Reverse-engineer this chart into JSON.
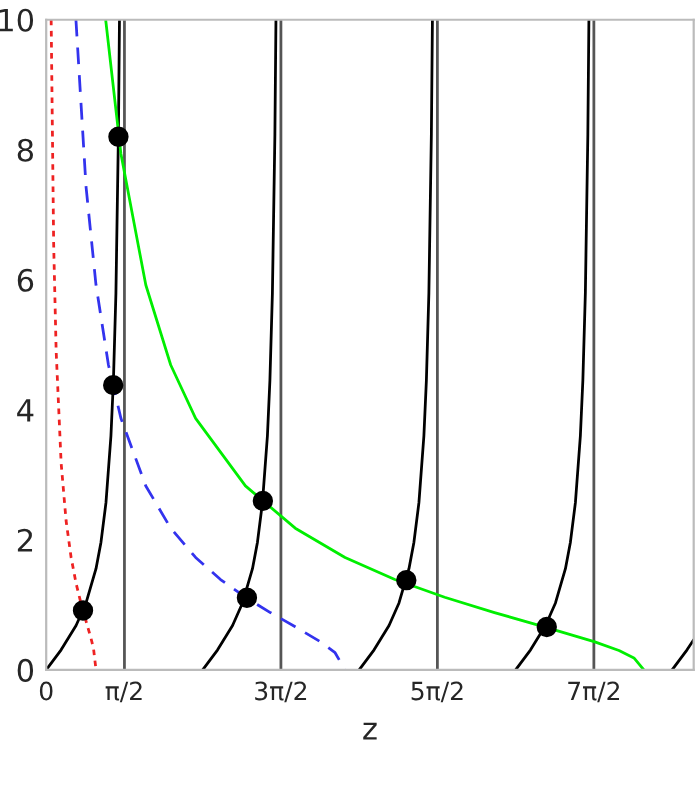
{
  "chart_data": {
    "type": "line",
    "xlabel": "z",
    "xlim": [
      0,
      13.0
    ],
    "ylim": [
      0,
      10
    ],
    "xticks": [
      0,
      {
        "value": 1.5708,
        "label": "π/2"
      },
      {
        "value": 4.7124,
        "label": "3π/2"
      },
      {
        "value": 7.854,
        "label": "5π/2"
      },
      {
        "value": 10.9956,
        "label": "7π/2"
      }
    ],
    "yticks": [
      0,
      2,
      4,
      6,
      8,
      10
    ],
    "grid": false,
    "legend": false,
    "marker": "none",
    "series": [
      {
        "color": "#000000",
        "line_style": "solid",
        "x": [
          0,
          0.3,
          0.6,
          0.8,
          1.0,
          1.1,
          1.2,
          1.3,
          1.35,
          1.4,
          1.45,
          1.4711
        ],
        "values": [
          0,
          0.309,
          0.684,
          1.03,
          1.557,
          1.965,
          2.572,
          3.602,
          4.455,
          5.798,
          8.238,
          10
        ]
      },
      {
        "color": "#000000",
        "line_style": "solid",
        "x": [
          3.1416,
          3.4416,
          3.7416,
          3.9416,
          4.1416,
          4.2416,
          4.3416,
          4.4416,
          4.4916,
          4.5416,
          4.5916,
          4.6127
        ],
        "values": [
          0,
          0.309,
          0.684,
          1.03,
          1.557,
          1.965,
          2.572,
          3.602,
          4.455,
          5.798,
          8.238,
          10
        ]
      },
      {
        "color": "#000000",
        "line_style": "solid",
        "x": [
          6.2832,
          6.5832,
          6.8832,
          7.0832,
          7.2832,
          7.3832,
          7.4832,
          7.5832,
          7.6332,
          7.6832,
          7.7332,
          7.7543
        ],
        "values": [
          0,
          0.309,
          0.684,
          1.03,
          1.557,
          1.965,
          2.572,
          3.602,
          4.455,
          5.798,
          8.238,
          10
        ]
      },
      {
        "color": "#000000",
        "line_style": "solid",
        "x": [
          9.4248,
          9.7248,
          10.0248,
          10.2248,
          10.4248,
          10.5248,
          10.6248,
          10.7248,
          10.7748,
          10.8248,
          10.8748,
          10.8959
        ],
        "values": [
          0,
          0.309,
          0.684,
          1.03,
          1.557,
          1.965,
          2.572,
          3.602,
          4.455,
          5.798,
          8.238,
          10
        ]
      },
      {
        "color": "#000000",
        "line_style": "solid",
        "x": [
          12.5664,
          12.8664,
          13.0
        ],
        "values": [
          0,
          0.309,
          0.463
        ]
      },
      {
        "color": "#00ee00",
        "line_style": "solid",
        "x": [
          1.194,
          1.5,
          2,
          2.5,
          3,
          4,
          5,
          6,
          7,
          8,
          9,
          10,
          11,
          11.5,
          11.8,
          12
        ],
        "values": [
          10,
          7.94,
          5.92,
          4.69,
          3.87,
          2.83,
          2.18,
          1.73,
          1.39,
          1.118,
          0.882,
          0.663,
          0.436,
          0.298,
          0.184,
          0
        ]
      },
      {
        "color": "#3333ee",
        "line_style": "dashed",
        "x": [
          0.597,
          0.8,
          1,
          1.25,
          1.5,
          2,
          2.5,
          3,
          3.5,
          4,
          4.5,
          5,
          5.5,
          5.8,
          6
        ],
        "values": [
          10,
          7.43,
          5.92,
          4.69,
          3.87,
          2.83,
          2.18,
          1.73,
          1.39,
          1.118,
          0.882,
          0.663,
          0.436,
          0.265,
          0
        ]
      },
      {
        "color": "#ee2222",
        "line_style": "dotted",
        "x": [
          0.0995,
          0.15,
          0.2,
          0.3,
          0.4,
          0.5,
          0.6,
          0.7,
          0.8,
          0.9,
          0.95,
          1
        ],
        "values": [
          10,
          6.54,
          4.9,
          3.18,
          2.29,
          1.73,
          1.33,
          1.02,
          0.75,
          0.484,
          0.329,
          0
        ]
      },
      {
        "type": "scatter",
        "marker": "circle",
        "color": "#000000",
        "x": [
          0.739,
          1.345,
          4.03,
          1.45,
          4.35,
          7.23,
          10.05
        ],
        "values": [
          0.914,
          4.38,
          1.11,
          8.2,
          2.6,
          1.38,
          0.66
        ]
      }
    ],
    "ref_lines": [
      {
        "axis": "x",
        "value": 1.5708,
        "color": "#555555"
      },
      {
        "axis": "x",
        "value": 4.7124,
        "color": "#555555"
      },
      {
        "axis": "x",
        "value": 7.854,
        "color": "#555555"
      },
      {
        "axis": "x",
        "value": 10.9956,
        "color": "#555555"
      }
    ]
  }
}
